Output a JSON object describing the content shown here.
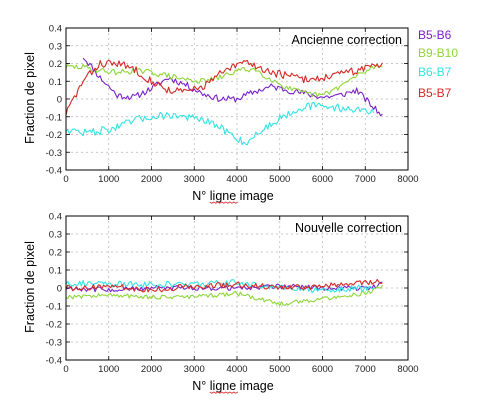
{
  "colors": {
    "B5-B6": "#7a22c9",
    "B9-B10": "#8ed63a",
    "B6-B7": "#33e3e3",
    "B5-B7": "#d42a24"
  },
  "legend": [
    {
      "label": "B5-B6",
      "color": "#7a22c9"
    },
    {
      "label": "B9-B10",
      "color": "#8ed63a"
    },
    {
      "label": "B6-B7",
      "color": "#33e3e3"
    },
    {
      "label": "B5-B7",
      "color": "#d42a24"
    }
  ],
  "chart_data": [
    {
      "type": "line",
      "title": "Ancienne correction",
      "xlabel": "N° ligne image",
      "ylabel": "Fraction de pixel",
      "xlim": [
        0,
        8000
      ],
      "ylim": [
        -0.4,
        0.4
      ],
      "xticks": [
        0,
        1000,
        2000,
        3000,
        4000,
        5000,
        6000,
        7000,
        8000
      ],
      "yticks": [
        -0.4,
        -0.3,
        -0.2,
        -0.1,
        0,
        0.1,
        0.2,
        0.3,
        0.4
      ],
      "grid": true,
      "series": [
        {
          "name": "B5-B6",
          "x": [
            400,
            800,
            1200,
            1600,
            2000,
            2400,
            2800,
            3200,
            3600,
            4000,
            4400,
            4800,
            5200,
            5600,
            6000,
            6400,
            6800,
            7200,
            7400
          ],
          "values": [
            0.24,
            0.12,
            0.02,
            0.01,
            0.06,
            0.12,
            0.08,
            0.03,
            0.0,
            0.0,
            0.04,
            0.07,
            0.05,
            0.03,
            0.01,
            0.02,
            0.05,
            -0.05,
            -0.09
          ]
        },
        {
          "name": "B9-B10",
          "x": [
            0,
            400,
            800,
            1200,
            1600,
            2000,
            2400,
            2800,
            3200,
            3600,
            4000,
            4400,
            4800,
            5200,
            5600,
            6000,
            6400,
            6800,
            7200,
            7400
          ],
          "values": [
            0.18,
            0.18,
            0.16,
            0.15,
            0.16,
            0.15,
            0.13,
            0.11,
            0.1,
            0.12,
            0.16,
            0.17,
            0.11,
            0.06,
            0.03,
            0.02,
            0.07,
            0.13,
            0.18,
            0.19
          ]
        },
        {
          "name": "B6-B7",
          "x": [
            0,
            400,
            800,
            1200,
            1600,
            2000,
            2400,
            2800,
            3200,
            3600,
            4000,
            4200,
            4400,
            4800,
            5200,
            5600,
            6000,
            6400,
            6800,
            7200
          ],
          "values": [
            -0.17,
            -0.19,
            -0.18,
            -0.16,
            -0.12,
            -0.1,
            -0.09,
            -0.1,
            -0.12,
            -0.16,
            -0.22,
            -0.25,
            -0.21,
            -0.14,
            -0.08,
            -0.04,
            -0.04,
            -0.05,
            -0.06,
            -0.07
          ]
        },
        {
          "name": "B5-B7",
          "x": [
            0,
            400,
            800,
            1200,
            1600,
            2000,
            2400,
            2800,
            3200,
            3600,
            4000,
            4200,
            4400,
            4800,
            5200,
            5600,
            6000,
            6400,
            6800,
            7200,
            7400
          ],
          "values": [
            -0.08,
            0.1,
            0.2,
            0.2,
            0.17,
            0.1,
            0.05,
            0.04,
            0.07,
            0.14,
            0.19,
            0.21,
            0.19,
            0.15,
            0.13,
            0.11,
            0.12,
            0.14,
            0.16,
            0.19,
            0.2
          ]
        }
      ]
    },
    {
      "type": "line",
      "title": "Nouvelle correction",
      "xlabel": "N° ligne image",
      "ylabel": "Fraction de pixel",
      "xlim": [
        0,
        8000
      ],
      "ylim": [
        -0.4,
        0.4
      ],
      "xticks": [
        0,
        1000,
        2000,
        3000,
        4000,
        5000,
        6000,
        7000,
        8000
      ],
      "yticks": [
        -0.4,
        -0.3,
        -0.2,
        -0.1,
        0,
        0.1,
        0.2,
        0.3,
        0.4
      ],
      "grid": true,
      "series": [
        {
          "name": "B5-B6",
          "x": [
            0,
            1000,
            2000,
            3000,
            4000,
            5000,
            6000,
            7000,
            7400
          ],
          "values": [
            0.0,
            -0.01,
            0.0,
            0.0,
            0.0,
            0.01,
            0.0,
            0.0,
            0.02
          ]
        },
        {
          "name": "B9-B10",
          "x": [
            0,
            1000,
            2000,
            3000,
            4000,
            5000,
            6000,
            7000,
            7400
          ],
          "values": [
            -0.05,
            -0.04,
            -0.05,
            -0.05,
            -0.03,
            -0.09,
            -0.06,
            -0.03,
            0.01
          ]
        },
        {
          "name": "B6-B7",
          "x": [
            0,
            1000,
            2000,
            3000,
            4000,
            5000,
            6000,
            7000,
            7200
          ],
          "values": [
            0.03,
            0.02,
            0.02,
            0.02,
            0.03,
            0.0,
            -0.01,
            0.0,
            0.01
          ]
        },
        {
          "name": "B5-B7",
          "x": [
            0,
            1000,
            2000,
            3000,
            4000,
            5000,
            6000,
            7000,
            7400
          ],
          "values": [
            0.0,
            0.01,
            -0.01,
            0.01,
            0.02,
            0.0,
            0.01,
            0.03,
            0.04
          ]
        }
      ]
    }
  ]
}
